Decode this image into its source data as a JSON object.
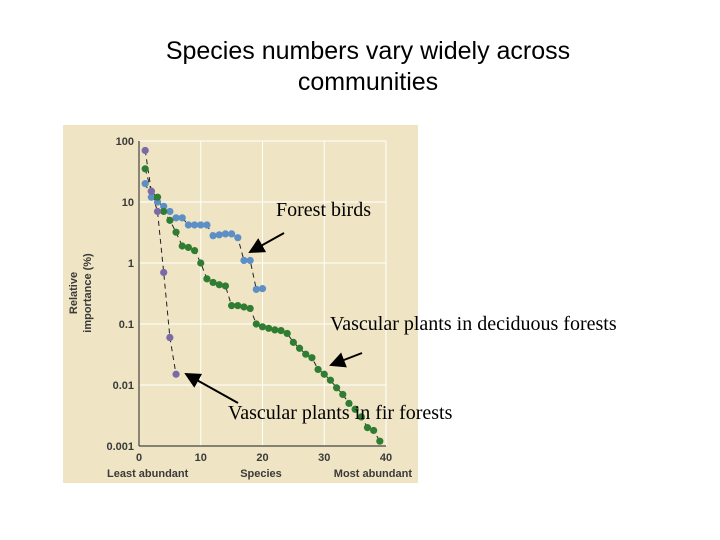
{
  "slide": {
    "title_line1": "Species numbers vary widely across",
    "title_line2": "communities"
  },
  "annotations": {
    "birds": "Forest birds",
    "deciduous": "Vascular plants in deciduous forests",
    "fir": "Vascular plants in fir forests"
  },
  "colors": {
    "panel": "#efe4c3",
    "grid": "#ffffff",
    "birds": "#5b8fc6",
    "deciduous": "#2e7d32",
    "fir": "#7b6aa8"
  },
  "chart_data": {
    "type": "scatter",
    "xlabel": "Species",
    "ylabel_line1": "Relative",
    "ylabel_line2": "importance (%)",
    "x_left_label": "Least abundant",
    "x_right_label": "Most abundant",
    "xlim": [
      0,
      40
    ],
    "ylim": [
      0.001,
      100
    ],
    "yscale": "log",
    "xticks": [
      0,
      10,
      20,
      30,
      40
    ],
    "yticks": [
      {
        "value": 100,
        "label": "100"
      },
      {
        "value": 10,
        "label": "10"
      },
      {
        "value": 1,
        "label": "1"
      },
      {
        "value": 0.1,
        "label": "0.1"
      },
      {
        "value": 0.01,
        "label": "0.01"
      },
      {
        "value": 0.001,
        "label": "0.001"
      }
    ],
    "grid": true,
    "series": [
      {
        "key": "birds",
        "x": [
          1,
          2,
          3,
          4,
          5,
          6,
          7,
          8,
          9,
          10,
          11,
          12,
          13,
          14,
          15,
          16,
          17,
          18,
          19,
          20
        ],
        "y": [
          20,
          12,
          10,
          8.5,
          7,
          5.5,
          5.5,
          4.2,
          4.2,
          4.2,
          4.2,
          2.8,
          2.9,
          3.0,
          3.0,
          2.6,
          1.1,
          1.1,
          0.37,
          0.38
        ]
      },
      {
        "key": "deciduous",
        "x": [
          1,
          2,
          3,
          4,
          5,
          6,
          7,
          8,
          9,
          10,
          11,
          12,
          13,
          14,
          15,
          16,
          17,
          18,
          19,
          20,
          21,
          22,
          23,
          24,
          25,
          26,
          27,
          28,
          29,
          30,
          31,
          32,
          33,
          34,
          35,
          36,
          37,
          38,
          39
        ],
        "y": [
          35,
          15,
          12,
          7,
          5,
          3.2,
          1.9,
          1.8,
          1.6,
          1.0,
          0.55,
          0.48,
          0.44,
          0.42,
          0.2,
          0.2,
          0.19,
          0.18,
          0.1,
          0.09,
          0.085,
          0.08,
          0.078,
          0.07,
          0.05,
          0.04,
          0.032,
          0.028,
          0.018,
          0.015,
          0.012,
          0.009,
          0.007,
          0.005,
          0.004,
          0.003,
          0.002,
          0.0018,
          0.0012
        ]
      },
      {
        "key": "fir",
        "x": [
          1,
          2,
          3,
          4,
          5,
          6
        ],
        "y": [
          70,
          15,
          7,
          0.7,
          0.06,
          0.015
        ]
      }
    ]
  }
}
